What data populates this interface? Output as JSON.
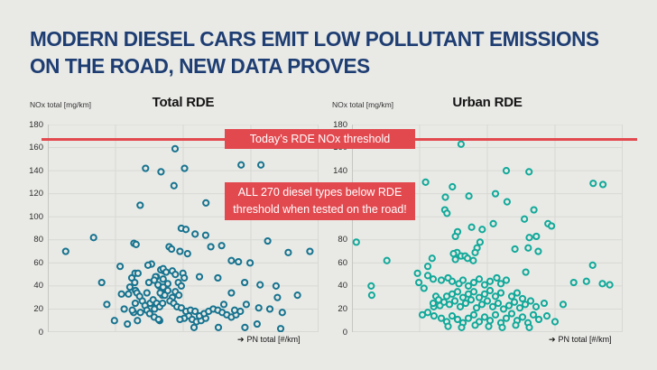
{
  "title": {
    "line1": "MODERN DIESEL CARS EMIT LOW POLLUTANT EMISSIONS",
    "line2": "ON THE ROAD, NEW DATA PROVES",
    "color": "#1e3d72"
  },
  "annotations": {
    "threshold_banner": "Today’s RDE NOx threshold",
    "callout_line1": "ALL 270 diesel types below RDE",
    "callout_line2": "threshold when tested on the road!"
  },
  "icons": {
    "right_arrow": "➔"
  },
  "colors": {
    "background": "#e9eae6",
    "title_navy": "#1e3d72",
    "red_accent": "#e2494f",
    "gridline": "#d8d8d4",
    "axis_line": "#c6c6c2",
    "total_rde_points": "#17738f",
    "urban_rde_points": "#12a99a"
  },
  "chart_data": [
    {
      "type": "scatter",
      "title": "Total RDE",
      "ylabel": "NOx total [mg/km]",
      "xlabel": "PN total [#/km]",
      "ylim": [
        0,
        180
      ],
      "y_ticks": [
        0,
        20,
        40,
        60,
        80,
        100,
        120,
        140,
        160,
        180
      ],
      "x_axis_numeric_labels": "none shown (x in relative 0-100 units)",
      "grid": true,
      "threshold": {
        "y": 168,
        "label": "Today’s RDE NOx threshold"
      },
      "point_color": "#17738f",
      "points": [
        [
          6.6,
          70
        ],
        [
          16.9,
          82
        ],
        [
          19.9,
          43
        ],
        [
          21.8,
          24
        ],
        [
          24.6,
          10
        ],
        [
          26.7,
          57
        ],
        [
          27.2,
          33
        ],
        [
          28.2,
          20
        ],
        [
          29.4,
          7
        ],
        [
          29.8,
          33
        ],
        [
          31,
          47
        ],
        [
          31.8,
          77
        ],
        [
          32.2,
          51
        ],
        [
          32.4,
          36
        ],
        [
          31.7,
          17
        ],
        [
          33.1,
          10
        ],
        [
          34.1,
          110
        ],
        [
          34.9,
          27
        ],
        [
          36.1,
          142
        ],
        [
          36.1,
          23
        ],
        [
          36.6,
          34
        ],
        [
          37.3,
          43
        ],
        [
          38.3,
          59
        ],
        [
          38.7,
          26
        ],
        [
          39.4,
          20
        ],
        [
          40.1,
          48
        ],
        [
          41.1,
          40
        ],
        [
          41.3,
          10
        ],
        [
          41.8,
          139
        ],
        [
          42.3,
          32
        ],
        [
          42.6,
          46
        ],
        [
          42.9,
          53
        ],
        [
          43.5,
          37
        ],
        [
          44.3,
          42
        ],
        [
          44.8,
          74
        ],
        [
          46.6,
          127
        ],
        [
          47,
          159
        ],
        [
          50.5,
          142
        ],
        [
          58.4,
          112
        ],
        [
          71.4,
          145
        ],
        [
          78.7,
          145
        ],
        [
          32.6,
          76
        ],
        [
          45.7,
          72
        ],
        [
          48.8,
          70
        ],
        [
          51.6,
          68
        ],
        [
          64.2,
          75
        ],
        [
          81.2,
          79
        ],
        [
          88.8,
          69
        ],
        [
          96.8,
          70
        ],
        [
          70.4,
          61
        ],
        [
          74.7,
          60
        ],
        [
          37,
          58
        ],
        [
          33.3,
          51
        ],
        [
          32.1,
          43
        ],
        [
          30.3,
          39
        ],
        [
          32.9,
          34
        ],
        [
          33.9,
          31
        ],
        [
          32.3,
          25
        ],
        [
          31.2,
          19
        ],
        [
          34.2,
          17
        ],
        [
          35.9,
          23
        ],
        [
          36.6,
          19
        ],
        [
          37.8,
          25
        ],
        [
          38.9,
          28
        ],
        [
          39.8,
          48
        ],
        [
          39.3,
          45
        ],
        [
          41.7,
          54
        ],
        [
          42.6,
          55
        ],
        [
          43.7,
          52
        ],
        [
          40.7,
          41
        ],
        [
          42.6,
          39
        ],
        [
          44.3,
          36
        ],
        [
          41.5,
          34
        ],
        [
          43.2,
          32
        ],
        [
          40.2,
          25
        ],
        [
          41.3,
          22
        ],
        [
          42.4,
          25
        ],
        [
          37.6,
          16
        ],
        [
          39.3,
          13
        ],
        [
          40.9,
          11
        ],
        [
          46,
          53
        ],
        [
          47.1,
          50
        ],
        [
          49.9,
          51
        ],
        [
          50.4,
          47
        ],
        [
          48.2,
          43
        ],
        [
          49.3,
          40
        ],
        [
          47.1,
          35
        ],
        [
          48.4,
          32
        ],
        [
          46,
          30
        ],
        [
          45.1,
          27
        ],
        [
          46.5,
          25
        ],
        [
          47.7,
          22
        ],
        [
          49.3,
          21
        ],
        [
          51,
          18
        ],
        [
          52.7,
          19
        ],
        [
          54.4,
          18
        ],
        [
          52.1,
          14
        ],
        [
          50.4,
          12
        ],
        [
          48.8,
          11
        ],
        [
          53.3,
          11
        ],
        [
          54.9,
          9
        ],
        [
          56.6,
          10
        ],
        [
          58.3,
          12
        ],
        [
          56,
          14
        ],
        [
          57.7,
          16
        ],
        [
          59.4,
          18
        ],
        [
          61.1,
          20
        ],
        [
          62.8,
          19
        ],
        [
          64.4,
          17
        ],
        [
          66.1,
          15
        ],
        [
          67.8,
          13
        ],
        [
          69.5,
          15
        ],
        [
          71.1,
          18
        ],
        [
          72.8,
          4
        ],
        [
          63,
          4
        ],
        [
          54,
          4
        ],
        [
          49.3,
          90
        ],
        [
          51,
          89
        ],
        [
          54.4,
          85
        ],
        [
          58.3,
          84
        ],
        [
          60.2,
          74
        ],
        [
          67.8,
          62
        ],
        [
          56,
          48
        ],
        [
          62.8,
          47
        ],
        [
          72.7,
          43
        ],
        [
          78.4,
          41
        ],
        [
          84.3,
          40
        ],
        [
          92.2,
          32
        ],
        [
          84.8,
          30
        ],
        [
          65,
          24
        ],
        [
          69,
          19
        ],
        [
          73.3,
          24
        ],
        [
          77.9,
          21
        ],
        [
          82,
          20
        ],
        [
          86.6,
          17
        ],
        [
          77.3,
          7
        ],
        [
          86,
          3
        ],
        [
          67.8,
          34
        ]
      ]
    },
    {
      "type": "scatter",
      "title": "Urban RDE",
      "ylabel": "NOx total [mg/km]",
      "xlabel": "PN total [#/km]",
      "ylim": [
        0,
        180
      ],
      "y_ticks": [
        0,
        20,
        40,
        60,
        80,
        100,
        120,
        140,
        160,
        180
      ],
      "x_axis_numeric_labels": "none shown (x in relative 0-100 units)",
      "grid": true,
      "threshold": {
        "y": 168,
        "label": "Today’s RDE NOx threshold"
      },
      "point_color": "#12a99a",
      "points": [
        [
          40.3,
          163
        ],
        [
          57,
          140
        ],
        [
          65.4,
          139
        ],
        [
          27.2,
          130
        ],
        [
          89.1,
          129
        ],
        [
          92.7,
          128
        ],
        [
          37.1,
          126
        ],
        [
          53,
          120
        ],
        [
          43.2,
          118
        ],
        [
          34.5,
          117
        ],
        [
          57.3,
          113
        ],
        [
          34.3,
          106
        ],
        [
          67.2,
          106
        ],
        [
          35.1,
          103
        ],
        [
          63.7,
          98
        ],
        [
          52.2,
          94
        ],
        [
          72.4,
          94
        ],
        [
          73.7,
          92
        ],
        [
          44.2,
          91
        ],
        [
          48.1,
          89
        ],
        [
          39,
          87
        ],
        [
          38.2,
          83
        ],
        [
          65.5,
          82
        ],
        [
          68.1,
          83
        ],
        [
          1.6,
          78
        ],
        [
          47.3,
          78
        ],
        [
          46.2,
          73
        ],
        [
          65.1,
          73
        ],
        [
          60.2,
          72
        ],
        [
          38.8,
          69
        ],
        [
          45.5,
          69
        ],
        [
          68.8,
          70
        ],
        [
          37.5,
          68
        ],
        [
          40.3,
          66
        ],
        [
          41.8,
          66
        ],
        [
          42.7,
          64
        ],
        [
          29.6,
          64
        ],
        [
          12.9,
          62
        ],
        [
          38.2,
          63
        ],
        [
          44.8,
          62
        ],
        [
          28,
          57
        ],
        [
          88.9,
          58
        ],
        [
          24.2,
          51
        ],
        [
          64.2,
          52
        ],
        [
          24.7,
          43
        ],
        [
          81.9,
          43
        ],
        [
          86.6,
          44
        ],
        [
          92.5,
          42
        ],
        [
          95.2,
          41
        ],
        [
          7.1,
          40
        ],
        [
          26.6,
          38
        ],
        [
          33,
          45
        ],
        [
          35.5,
          47
        ],
        [
          37,
          44
        ],
        [
          39.5,
          42
        ],
        [
          41,
          45
        ],
        [
          43,
          40
        ],
        [
          45,
          43
        ],
        [
          47,
          46
        ],
        [
          49,
          41
        ],
        [
          51,
          44
        ],
        [
          53.5,
          47
        ],
        [
          55,
          42
        ],
        [
          57,
          45
        ],
        [
          30,
          46
        ],
        [
          28,
          49
        ],
        [
          7.3,
          32
        ],
        [
          31,
          31
        ],
        [
          32,
          28
        ],
        [
          30.2,
          22
        ],
        [
          78,
          24
        ],
        [
          30,
          25
        ],
        [
          32.5,
          23
        ],
        [
          34,
          26
        ],
        [
          36,
          24
        ],
        [
          38,
          27
        ],
        [
          40,
          22
        ],
        [
          42,
          25
        ],
        [
          44,
          28
        ],
        [
          46,
          21
        ],
        [
          48,
          24
        ],
        [
          50,
          27
        ],
        [
          52,
          22
        ],
        [
          54,
          25
        ],
        [
          56,
          20
        ],
        [
          58,
          23
        ],
        [
          60,
          26
        ],
        [
          62,
          21
        ],
        [
          64,
          24
        ],
        [
          66,
          27
        ],
        [
          68,
          22
        ],
        [
          71,
          25
        ],
        [
          35,
          31
        ],
        [
          37,
          33
        ],
        [
          39,
          35
        ],
        [
          41,
          30
        ],
        [
          43,
          33
        ],
        [
          45,
          35
        ],
        [
          47,
          30
        ],
        [
          49,
          33
        ],
        [
          51,
          36
        ],
        [
          53,
          31
        ],
        [
          55,
          34
        ],
        [
          59,
          31
        ],
        [
          61,
          34
        ],
        [
          63,
          29
        ],
        [
          30.3,
          14
        ],
        [
          33,
          12
        ],
        [
          35,
          9
        ],
        [
          37,
          14
        ],
        [
          39,
          11
        ],
        [
          41,
          8
        ],
        [
          43,
          12
        ],
        [
          45,
          15
        ],
        [
          47,
          9
        ],
        [
          49,
          13
        ],
        [
          51,
          10
        ],
        [
          53,
          15
        ],
        [
          55,
          8
        ],
        [
          57,
          12
        ],
        [
          59,
          16
        ],
        [
          61,
          10
        ],
        [
          63,
          13
        ],
        [
          65,
          8
        ],
        [
          67,
          15
        ],
        [
          69,
          11
        ],
        [
          72,
          14
        ],
        [
          75,
          9
        ],
        [
          35.5,
          5
        ],
        [
          40.5,
          4
        ],
        [
          45.5,
          6
        ],
        [
          50.5,
          5
        ],
        [
          55.5,
          4
        ],
        [
          60.5,
          6
        ],
        [
          65.5,
          4
        ],
        [
          28,
          17
        ],
        [
          26,
          15
        ]
      ]
    }
  ]
}
